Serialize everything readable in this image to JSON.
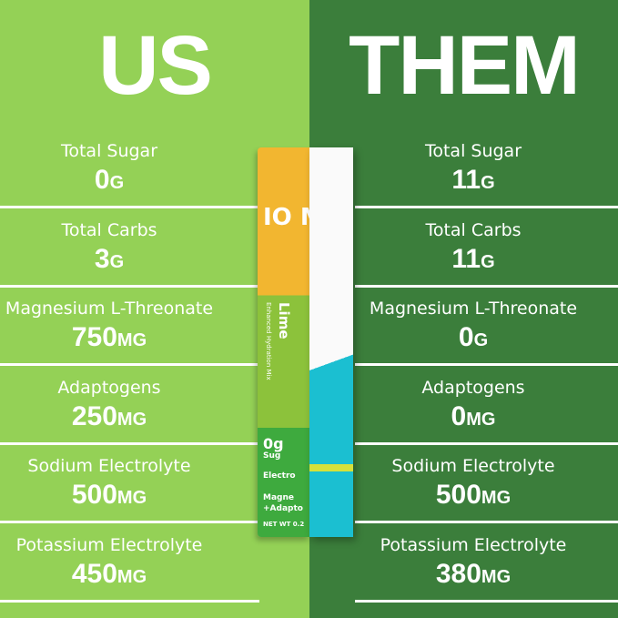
{
  "us": {
    "heading": "US",
    "rows": [
      {
        "label": "Total Sugar",
        "value": "0",
        "unit": "G"
      },
      {
        "label": "Total Carbs",
        "value": "3",
        "unit": "G"
      },
      {
        "label": "Magnesium L-Threonate",
        "value": "750",
        "unit": "MG"
      },
      {
        "label": "Adaptogens",
        "value": "250",
        "unit": "MG"
      },
      {
        "label": "Sodium Electrolyte",
        "value": "500",
        "unit": "MG"
      },
      {
        "label": "Potassium Electrolyte",
        "value": "450",
        "unit": "MG"
      }
    ]
  },
  "them": {
    "heading": "THEM",
    "rows": [
      {
        "label": "Total Sugar",
        "value": "11",
        "unit": "G"
      },
      {
        "label": "Total Carbs",
        "value": "11",
        "unit": "G"
      },
      {
        "label": "Magnesium L-Threonate",
        "value": "0",
        "unit": "G"
      },
      {
        "label": "Adaptogens",
        "value": "0",
        "unit": "MG"
      },
      {
        "label": "Sodium Electrolyte",
        "value": "500",
        "unit": "MG"
      },
      {
        "label": "Potassium Electrolyte",
        "value": "380",
        "unit": "MG"
      }
    ]
  },
  "packet": {
    "brand": "IO MI",
    "flavor": "Lime",
    "subtitle": "Enhanced Hydration Mix",
    "sugar": "0g",
    "sugar_label": "Sug",
    "line1": "Electro",
    "line2": "Magne",
    "line3": "+Adapto",
    "net_wt": "NET WT 0.2"
  },
  "colors": {
    "us_bg": "#94d156",
    "them_bg": "#3b7e3b"
  }
}
